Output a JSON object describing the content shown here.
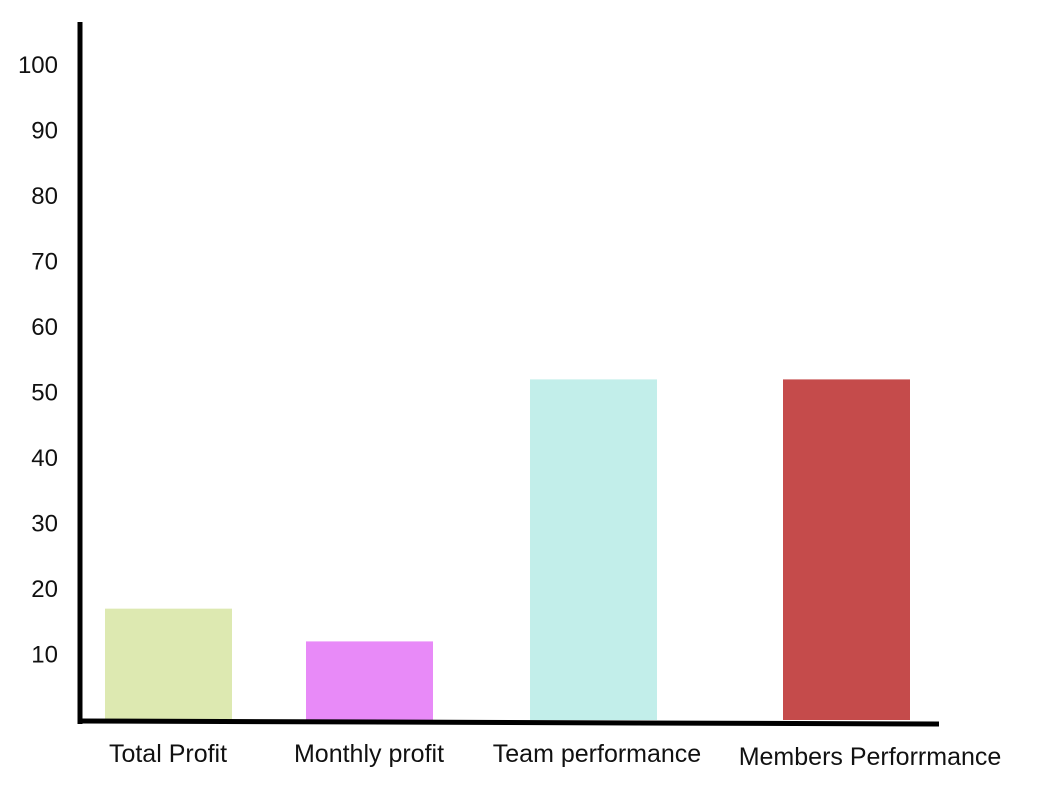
{
  "chart_data": {
    "type": "bar",
    "title": "",
    "xlabel": "",
    "ylabel": "",
    "ylim": [
      0,
      100
    ],
    "yticks": [
      10,
      20,
      30,
      40,
      50,
      60,
      70,
      80,
      90,
      100
    ],
    "grid": false,
    "legend": "none",
    "categories": [
      "Total Profit",
      "Monthly profit",
      "Team performance",
      "Members Perforrmance"
    ],
    "values": [
      17,
      12,
      52,
      52
    ],
    "colors": [
      "#dde9b1",
      "#e88af8",
      "#c2eeea",
      "#c54b4b"
    ]
  }
}
